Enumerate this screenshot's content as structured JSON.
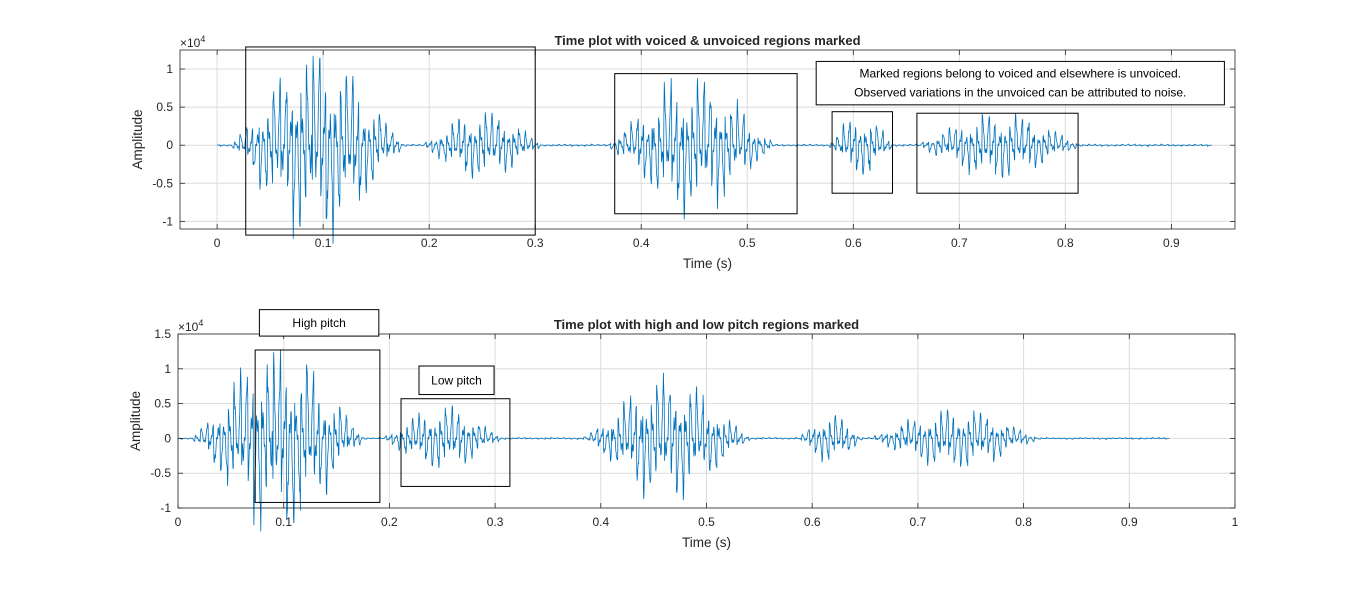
{
  "chart_data": [
    {
      "type": "line",
      "title": "Time plot with voiced & unvoiced regions marked",
      "xlabel": "Time (s)",
      "ylabel": "Amplitude",
      "exponent_label": "×10",
      "exponent_power": "4",
      "xlim": [
        -0.035,
        0.96
      ],
      "ylim": [
        -1.1,
        1.25
      ],
      "xticks": [
        0,
        0.1,
        0.2,
        0.3,
        0.4,
        0.5,
        0.6,
        0.7,
        0.8,
        0.9
      ],
      "xtick_labels": [
        "0",
        "0.1",
        "0.2",
        "0.3",
        "0.4",
        "0.5",
        "0.6",
        "0.7",
        "0.8",
        "0.9"
      ],
      "yticks": [
        -1,
        -0.5,
        0,
        0.5,
        1
      ],
      "ytick_labels": [
        "-1",
        "-0.5",
        "0",
        "0.5",
        "1"
      ],
      "grid": true,
      "series_color": "#0072BD",
      "signal_extent": [
        0,
        0.938
      ],
      "segments": [
        {
          "start": 0.02,
          "end": 0.17,
          "peak": 1.25
        },
        {
          "start": 0.2,
          "end": 0.3,
          "peak": 0.47
        },
        {
          "start": 0.375,
          "end": 0.52,
          "peak": 0.88
        },
        {
          "start": 0.585,
          "end": 0.63,
          "peak": 0.42
        },
        {
          "start": 0.665,
          "end": 0.81,
          "peak": 0.44
        }
      ],
      "regions": [
        {
          "x0": 0.027,
          "x1": 0.3,
          "y0": -1.18,
          "y1": 1.29
        },
        {
          "x0": 0.375,
          "x1": 0.547,
          "y0": -0.9,
          "y1": 0.94
        },
        {
          "x0": 0.58,
          "x1": 0.637,
          "y0": -0.63,
          "y1": 0.44
        },
        {
          "x0": 0.66,
          "x1": 0.812,
          "y0": -0.63,
          "y1": 0.42
        }
      ],
      "annotations": [
        {
          "lines": [
            "Marked regions belong to voiced and elsewhere is unvoiced.",
            "Observed variations in the unvoiced can be attributed to noise."
          ],
          "x0": 0.565,
          "x1": 0.95,
          "y0": 0.53,
          "y1": 1.1
        }
      ]
    },
    {
      "type": "line",
      "title": "Time plot with high and low pitch regions marked",
      "xlabel": "Time (s)",
      "ylabel": "Amplitude",
      "exponent_label": "×10",
      "exponent_power": "4",
      "xlim": [
        0,
        1
      ],
      "ylim": [
        -1,
        1.5
      ],
      "xticks": [
        0,
        0.1,
        0.2,
        0.3,
        0.4,
        0.5,
        0.6,
        0.7,
        0.8,
        0.9,
        1
      ],
      "xtick_labels": [
        "0",
        "0.1",
        "0.2",
        "0.3",
        "0.4",
        "0.5",
        "0.6",
        "0.7",
        "0.8",
        "0.9",
        "1"
      ],
      "yticks": [
        -1,
        -0.5,
        0,
        0.5,
        1,
        1.5
      ],
      "ytick_labels": [
        "-1",
        "-0.5",
        "0",
        "0.5",
        "1",
        "1.5"
      ],
      "grid": true,
      "series_color": "#0072BD",
      "signal_extent": [
        0,
        0.938
      ],
      "segments": [
        {
          "start": 0.02,
          "end": 0.17,
          "peak": 1.3
        },
        {
          "start": 0.2,
          "end": 0.3,
          "peak": 0.48
        },
        {
          "start": 0.39,
          "end": 0.535,
          "peak": 0.88
        },
        {
          "start": 0.595,
          "end": 0.64,
          "peak": 0.36
        },
        {
          "start": 0.66,
          "end": 0.81,
          "peak": 0.44
        }
      ],
      "regions": [
        {
          "x0": 0.073,
          "x1": 0.191,
          "y0": -0.92,
          "y1": 1.27
        },
        {
          "x0": 0.211,
          "x1": 0.314,
          "y0": -0.69,
          "y1": 0.57
        }
      ],
      "annotations": [
        {
          "lines": [
            "High pitch"
          ],
          "x0": 0.077,
          "x1": 0.19,
          "y0": 1.47,
          "y1": 1.85
        },
        {
          "lines": [
            "Low pitch"
          ],
          "x0": 0.228,
          "x1": 0.299,
          "y0": 0.63,
          "y1": 1.04
        }
      ]
    }
  ]
}
